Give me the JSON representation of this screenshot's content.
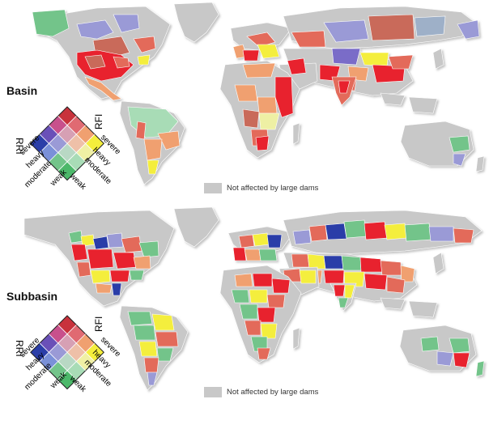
{
  "panels": [
    {
      "id": "basin",
      "title": "Basin",
      "legend": {
        "left_axis": "RRI",
        "right_axis": "RFI",
        "left_levels": [
          "severe",
          "heavy",
          "moderate",
          "weak"
        ],
        "right_levels": [
          "severe",
          "heavy",
          "moderate",
          "weak"
        ]
      },
      "nodata_label": "Not affected by large dams"
    },
    {
      "id": "subbasin",
      "title": "Subbasin",
      "legend": {
        "left_axis": "RRI",
        "right_axis": "RFI",
        "left_levels": [
          "severe",
          "heavy",
          "moderate",
          "weak"
        ],
        "right_levels": [
          "severe",
          "heavy",
          "moderate",
          "weak"
        ]
      },
      "nodata_label": "Not affected by large dams"
    }
  ],
  "colors": {
    "no_data": "#c8c8c8",
    "red_severe": "#e8222e",
    "red_mid": "#e36a5a",
    "salmon": "#f0a070",
    "brick": "#c96a5a",
    "yellow": "#f4ee3c",
    "pale_yellow": "#eef0a4",
    "green": "#73c48a",
    "light_green": "#a8dcb6",
    "lavender": "#9a9ad6",
    "purple": "#7a6cc8",
    "blue": "#2b3ea8",
    "grey_blue": "#9eb0c8"
  },
  "legend_grid": [
    [
      "#c8323c",
      "#e06a72",
      "#f0a070",
      "#f4ee3c"
    ],
    [
      "#c8508c",
      "#d6a0b4",
      "#eec0a8",
      "#f0f0a4"
    ],
    [
      "#6a50b8",
      "#9a9ad6",
      "#b8d8c4",
      "#a8dcb6"
    ],
    [
      "#2b3ea8",
      "#7a90d8",
      "#73c48a",
      "#4cb86a"
    ]
  ]
}
